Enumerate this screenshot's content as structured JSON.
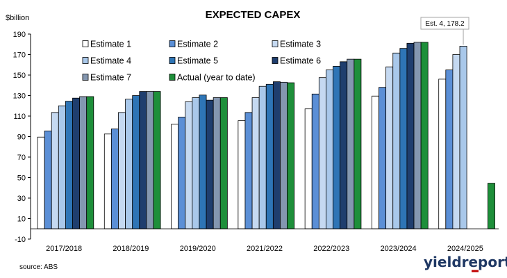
{
  "chart_data": {
    "type": "bar",
    "title": "EXPECTED CAPEX",
    "ylabel": "$billion",
    "xlabel": "",
    "ylim": [
      -10,
      190
    ],
    "yticks": [
      -10,
      10,
      30,
      50,
      70,
      90,
      110,
      130,
      150,
      170,
      190
    ],
    "grid": false,
    "legend_placement": "top",
    "categories": [
      "2017/2018",
      "2018/2019",
      "2019/2020",
      "2021/2022",
      "2022/2023",
      "2023/2024",
      "2024/2025"
    ],
    "series": [
      {
        "name": "Estimate 1",
        "color": "#ffffff",
        "values": [
          89.5,
          92.5,
          102.0,
          105.5,
          117.0,
          129.5,
          146.0
        ]
      },
      {
        "name": "Estimate 2",
        "color": "#5b8fd6",
        "values": [
          95.5,
          97.5,
          109.0,
          113.5,
          131.5,
          138.0,
          155.0
        ]
      },
      {
        "name": "Estimate 3",
        "color": "#c5d9f1",
        "values": [
          113.5,
          113.5,
          124.0,
          128.0,
          147.5,
          158.0,
          170.0
        ]
      },
      {
        "name": "Estimate 4",
        "color": "#a9c8ea",
        "values": [
          120.0,
          126.5,
          128.0,
          139.0,
          155.0,
          171.5,
          178.2
        ]
      },
      {
        "name": "Estimate 5",
        "color": "#2e75b6",
        "values": [
          124.5,
          130.0,
          130.5,
          141.0,
          158.5,
          176.0,
          null
        ]
      },
      {
        "name": "Estimate 6",
        "color": "#1f3e6e",
        "values": [
          127.5,
          134.0,
          125.5,
          143.5,
          163.0,
          181.0,
          null
        ]
      },
      {
        "name": "Estimate 7",
        "color": "#8497b0",
        "values": [
          129.0,
          134.0,
          128.0,
          143.0,
          165.5,
          182.0,
          null
        ]
      },
      {
        "name": "Actual (year to date)",
        "color": "#1e8f3a",
        "values": [
          129.0,
          134.0,
          128.0,
          142.5,
          165.5,
          182.0,
          44.5
        ]
      }
    ],
    "annotations": [
      {
        "text": "Est. 4, 178.2",
        "category": "2024/2025",
        "series": "Estimate 4"
      }
    ]
  },
  "source": "source: ABS",
  "brand": "yieldreport",
  "brand_color": "#1f3864",
  "brand_accent": "#c00000"
}
